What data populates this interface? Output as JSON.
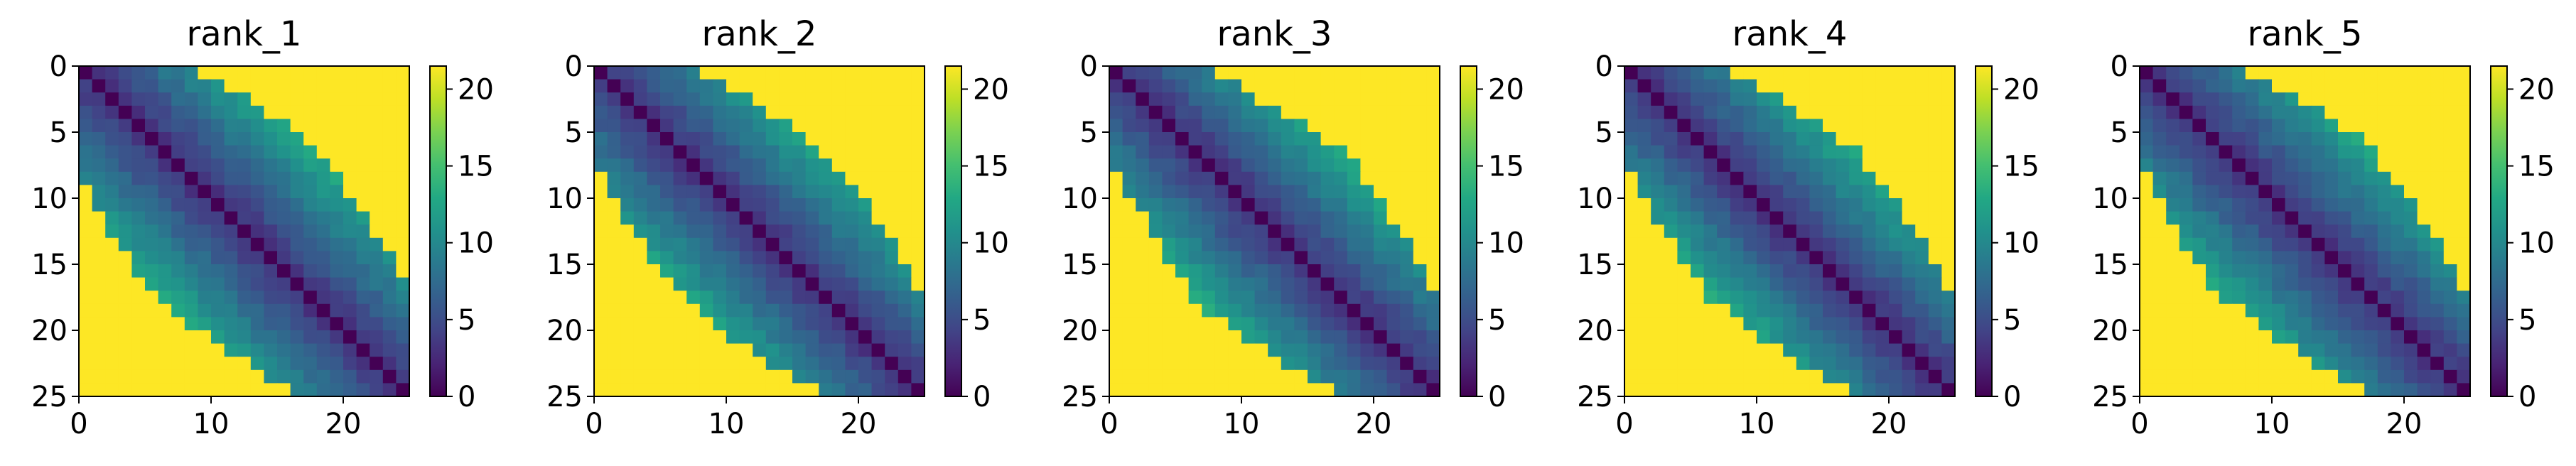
{
  "figure": {
    "background": "#ffffff",
    "colormap": "viridis"
  },
  "chart_data": [
    {
      "type": "heatmap",
      "title": "rank_1",
      "xlabel": "",
      "ylabel": "",
      "grid_size": 25,
      "x_ticks": [
        "0",
        "10",
        "20"
      ],
      "y_ticks": [
        "0",
        "5",
        "10",
        "15",
        "20",
        "25"
      ],
      "colorbar": {
        "min": 0,
        "max": 21.5,
        "ticks": [
          "0",
          "5",
          "10",
          "15",
          "20"
        ]
      },
      "saturated_value": 21.5,
      "profile": {
        "gradient": 0.72,
        "bandwidth": [
          8,
          9,
          10,
          10,
          11,
          11,
          12,
          12,
          12,
          11,
          11,
          10,
          10,
          10,
          11,
          11,
          12,
          12,
          11,
          11,
          10,
          10,
          9,
          9,
          8
        ]
      }
    },
    {
      "type": "heatmap",
      "title": "rank_2",
      "xlabel": "",
      "ylabel": "",
      "grid_size": 25,
      "x_ticks": [
        "0",
        "10",
        "20"
      ],
      "y_ticks": [
        "0",
        "5",
        "10",
        "15",
        "20",
        "25"
      ],
      "colorbar": {
        "min": 0,
        "max": 21.5,
        "ticks": [
          "0",
          "5",
          "10",
          "15",
          "20"
        ]
      },
      "saturated_value": 21.5,
      "profile": {
        "gradient": 0.75,
        "bandwidth": [
          7,
          8,
          9,
          9,
          10,
          10,
          10,
          11,
          11,
          11,
          11,
          11,
          11,
          11,
          11,
          11,
          11,
          11,
          10,
          10,
          10,
          9,
          9,
          8,
          7
        ]
      }
    },
    {
      "type": "heatmap",
      "title": "rank_3",
      "xlabel": "",
      "ylabel": "",
      "grid_size": 25,
      "x_ticks": [
        "0",
        "10",
        "20"
      ],
      "y_ticks": [
        "0",
        "5",
        "10",
        "15",
        "20",
        "25"
      ],
      "colorbar": {
        "min": 0,
        "max": 21.5,
        "ticks": [
          "0",
          "5",
          "10",
          "15",
          "20"
        ]
      },
      "saturated_value": 21.5,
      "profile": {
        "gradient": 0.75,
        "bandwidth": [
          7,
          8,
          8,
          9,
          10,
          10,
          11,
          11,
          11,
          11,
          11,
          11,
          11,
          11,
          11,
          11,
          11,
          11,
          11,
          10,
          10,
          9,
          9,
          8,
          7
        ]
      }
    },
    {
      "type": "heatmap",
      "title": "rank_4",
      "xlabel": "",
      "ylabel": "",
      "grid_size": 25,
      "x_ticks": [
        "0",
        "10",
        "20"
      ],
      "y_ticks": [
        "0",
        "5",
        "10",
        "15",
        "20",
        "25"
      ],
      "colorbar": {
        "min": 0,
        "max": 21.5,
        "ticks": [
          "0",
          "5",
          "10",
          "15",
          "20"
        ]
      },
      "saturated_value": 21.5,
      "profile": {
        "gradient": 0.75,
        "bandwidth": [
          7,
          8,
          9,
          9,
          10,
          10,
          11,
          11,
          11,
          11,
          11,
          11,
          11,
          11,
          11,
          11,
          11,
          11,
          10,
          10,
          10,
          9,
          9,
          8,
          7
        ]
      }
    },
    {
      "type": "heatmap",
      "title": "rank_5",
      "xlabel": "",
      "ylabel": "",
      "grid_size": 25,
      "x_ticks": [
        "0",
        "10",
        "20"
      ],
      "y_ticks": [
        "0",
        "5",
        "10",
        "15",
        "20",
        "25"
      ],
      "colorbar": {
        "min": 0,
        "max": 21.5,
        "ticks": [
          "0",
          "5",
          "10",
          "15",
          "20"
        ]
      },
      "saturated_value": 21.5,
      "profile": {
        "gradient": 0.72,
        "bandwidth": [
          7,
          8,
          9,
          10,
          10,
          11,
          11,
          11,
          11,
          11,
          11,
          11,
          11,
          11,
          11,
          11,
          11,
          11,
          10,
          10,
          10,
          9,
          9,
          8,
          7
        ]
      }
    }
  ]
}
